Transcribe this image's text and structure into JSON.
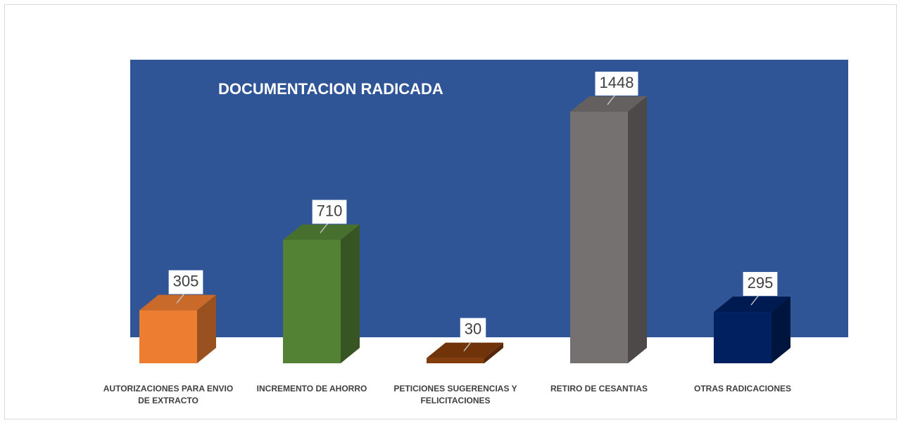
{
  "chart_data": {
    "type": "bar3d",
    "title": "DOCUMENTACION RADICADA",
    "categories": [
      "AUTORIZACIONES PARA ENVIO DE EXTRACTO",
      "INCREMENTO DE AHORRO",
      "PETICIONES SUGERENCIAS Y FELICITACIONES",
      "RETIRO DE CESANTIAS",
      "OTRAS RADICACIONES"
    ],
    "values": [
      305,
      710,
      30,
      1448,
      295
    ],
    "colors": [
      "#ED7D31",
      "#548235",
      "#843C0C",
      "#767171",
      "#002060"
    ],
    "background": "#2F5597"
  }
}
